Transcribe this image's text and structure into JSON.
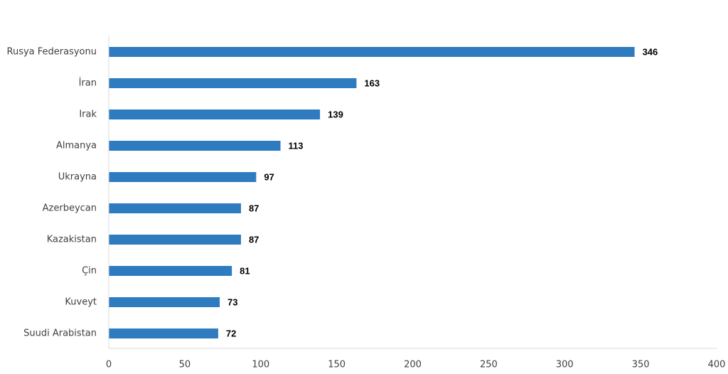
{
  "chart_data": {
    "type": "bar",
    "orientation": "horizontal",
    "categories": [
      "Rusya Federasyonu",
      "İran",
      "Irak",
      "Almanya",
      "Ukrayna",
      "Azerbeycan",
      "Kazakistan",
      "Çin",
      "Kuveyt",
      "Suudi Arabistan"
    ],
    "values": [
      346,
      163,
      139,
      113,
      97,
      87,
      87,
      81,
      73,
      72
    ],
    "xlim": [
      0,
      400
    ],
    "xticks": [
      0,
      50,
      100,
      150,
      200,
      250,
      300,
      350,
      400
    ],
    "bar_color": "#2e7bbf",
    "data_labels": true,
    "grid": false,
    "legend": "none",
    "title": "",
    "xlabel": "",
    "ylabel": ""
  }
}
